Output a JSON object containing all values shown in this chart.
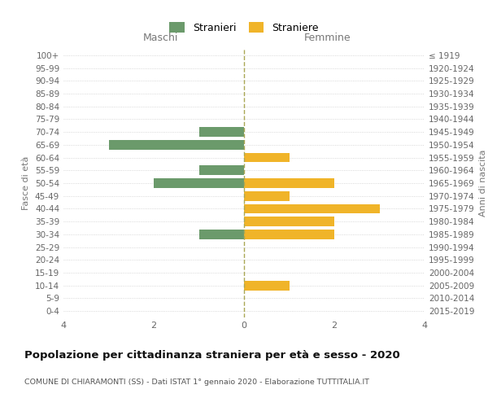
{
  "age_groups": [
    "100+",
    "95-99",
    "90-94",
    "85-89",
    "80-84",
    "75-79",
    "70-74",
    "65-69",
    "60-64",
    "55-59",
    "50-54",
    "45-49",
    "40-44",
    "35-39",
    "30-34",
    "25-29",
    "20-24",
    "15-19",
    "10-14",
    "5-9",
    "0-4"
  ],
  "birth_years": [
    "≤ 1919",
    "1920-1924",
    "1925-1929",
    "1930-1934",
    "1935-1939",
    "1940-1944",
    "1945-1949",
    "1950-1954",
    "1955-1959",
    "1960-1964",
    "1965-1969",
    "1970-1974",
    "1975-1979",
    "1980-1984",
    "1985-1989",
    "1990-1994",
    "1995-1999",
    "2000-2004",
    "2005-2009",
    "2010-2014",
    "2015-2019"
  ],
  "males": [
    0,
    0,
    0,
    0,
    0,
    0,
    1,
    3,
    0,
    1,
    2,
    0,
    0,
    0,
    1,
    0,
    0,
    0,
    0,
    0,
    0
  ],
  "females": [
    0,
    0,
    0,
    0,
    0,
    0,
    0,
    0,
    1,
    0,
    2,
    1,
    3,
    2,
    2,
    0,
    0,
    0,
    1,
    0,
    0
  ],
  "male_color": "#6b9a6b",
  "female_color": "#f0b429",
  "xlim": 4,
  "xlabel_left": "Maschi",
  "xlabel_right": "Femmine",
  "ylabel_left": "Fasce di età",
  "ylabel_right": "Anni di nascita",
  "legend_male": "Stranieri",
  "legend_female": "Straniere",
  "title": "Popolazione per cittadinanza straniera per età e sesso - 2020",
  "subtitle": "COMUNE DI CHIARAMONTI (SS) - Dati ISTAT 1° gennaio 2020 - Elaborazione TUTTITALIA.IT",
  "background_color": "#ffffff",
  "grid_color": "#cccccc",
  "bar_height": 0.75,
  "xticks": [
    -4,
    -2,
    0,
    2,
    4
  ],
  "xtick_labels": [
    "4",
    "2",
    "0",
    "2",
    "4"
  ]
}
